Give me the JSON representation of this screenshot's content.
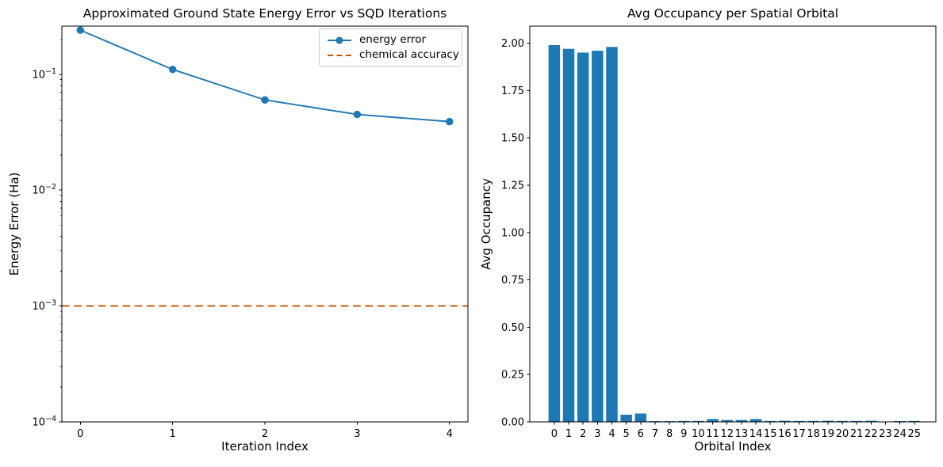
{
  "figure_background": "#ffffff",
  "text_color": "#000000",
  "chart_data": [
    {
      "type": "line",
      "title": "Approximated Ground State Energy Error vs SQD Iterations",
      "xlabel": "Iteration Index",
      "ylabel": "Energy Error (Ha)",
      "yscale": "log",
      "grid": false,
      "xlim": [
        -0.2,
        4.2
      ],
      "ylim": [
        0.0001,
        0.26
      ],
      "xticks": [
        "0",
        "1",
        "2",
        "3",
        "4"
      ],
      "ytick_exponents": [
        -1,
        -2,
        -3,
        -4
      ],
      "legend_position": "upper right",
      "series": [
        {
          "name": "energy error",
          "kind": "line-with-markers",
          "color": "#1f77b4",
          "marker": "circle",
          "x": [
            0,
            1,
            2,
            3,
            4
          ],
          "y": [
            0.24,
            0.11,
            0.06,
            0.045,
            0.039
          ]
        },
        {
          "name": "chemical accuracy",
          "kind": "horizontal-dashed-line",
          "color": "#c55400",
          "y": 0.001
        }
      ]
    },
    {
      "type": "bar",
      "title": "Avg Occupancy per Spatial Orbital",
      "xlabel": "Orbital Index",
      "ylabel": "Avg Occupancy",
      "grid": false,
      "bar_color": "#1f77b4",
      "ylim": [
        0,
        2.09
      ],
      "yticks": [
        "0.00",
        "0.25",
        "0.50",
        "0.75",
        "1.00",
        "1.25",
        "1.50",
        "1.75",
        "2.00"
      ],
      "categories": [
        "0",
        "1",
        "2",
        "3",
        "4",
        "5",
        "6",
        "7",
        "8",
        "9",
        "10",
        "11",
        "12",
        "13",
        "14",
        "15",
        "16",
        "17",
        "18",
        "19",
        "20",
        "21",
        "22",
        "23",
        "24",
        "25"
      ],
      "values": [
        1.99,
        1.97,
        1.95,
        1.96,
        1.98,
        0.038,
        0.044,
        0.004,
        0.004,
        0.005,
        0.005,
        0.015,
        0.01,
        0.01,
        0.015,
        0.005,
        0.006,
        0.005,
        0.005,
        0.006,
        0.005,
        0.005,
        0.006,
        0.001,
        0.004,
        0.005
      ]
    }
  ]
}
